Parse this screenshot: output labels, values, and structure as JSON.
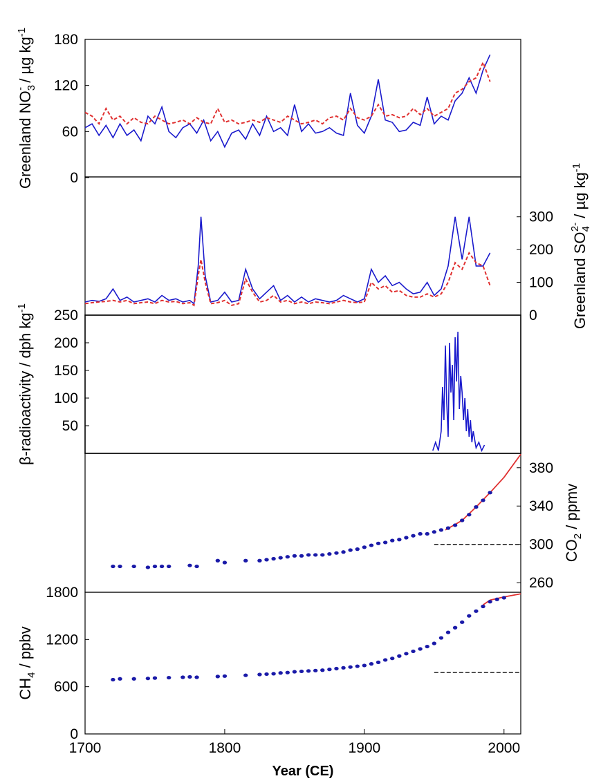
{
  "chart_data": [
    {
      "type": "line",
      "panel": "nitrate",
      "xlim": [
        1700,
        2012
      ],
      "ylim": [
        0,
        180
      ],
      "yticks": [
        "0",
        "60",
        "120",
        "180"
      ],
      "ylabel": {
        "main": "Greenland NO",
        "sub": "3",
        "sup": "-",
        "unit": " / µg kg",
        "unitsup": "-1"
      },
      "axis_side": "left",
      "series": [
        {
          "style": "solid",
          "color": "#1a1acc",
          "x": [
            1700,
            1705,
            1710,
            1715,
            1720,
            1725,
            1730,
            1735,
            1740,
            1745,
            1750,
            1755,
            1760,
            1765,
            1770,
            1775,
            1780,
            1785,
            1790,
            1795,
            1800,
            1805,
            1810,
            1815,
            1820,
            1825,
            1830,
            1835,
            1840,
            1845,
            1850,
            1855,
            1860,
            1865,
            1870,
            1875,
            1880,
            1885,
            1890,
            1895,
            1900,
            1905,
            1910,
            1915,
            1920,
            1925,
            1930,
            1935,
            1940,
            1945,
            1950,
            1955,
            1960,
            1965,
            1970,
            1975,
            1980,
            1985,
            1990
          ],
          "y": [
            65,
            70,
            55,
            68,
            52,
            70,
            55,
            62,
            48,
            80,
            70,
            92,
            60,
            52,
            65,
            70,
            58,
            75,
            48,
            60,
            40,
            58,
            62,
            50,
            70,
            55,
            80,
            60,
            65,
            55,
            95,
            60,
            70,
            58,
            60,
            65,
            58,
            55,
            110,
            68,
            58,
            80,
            128,
            75,
            72,
            60,
            62,
            72,
            68,
            105,
            70,
            80,
            75,
            100,
            110,
            130,
            110,
            140,
            160
          ]
        },
        {
          "style": "dashed",
          "color": "#e03030",
          "x": [
            1700,
            1705,
            1710,
            1715,
            1720,
            1725,
            1730,
            1735,
            1740,
            1745,
            1750,
            1755,
            1760,
            1765,
            1770,
            1775,
            1780,
            1785,
            1790,
            1795,
            1800,
            1805,
            1810,
            1815,
            1820,
            1825,
            1830,
            1835,
            1840,
            1845,
            1850,
            1855,
            1860,
            1865,
            1870,
            1875,
            1880,
            1885,
            1890,
            1895,
            1900,
            1905,
            1910,
            1915,
            1920,
            1925,
            1930,
            1935,
            1940,
            1945,
            1950,
            1955,
            1960,
            1965,
            1970,
            1975,
            1980,
            1985,
            1990
          ],
          "y": [
            85,
            80,
            70,
            90,
            75,
            80,
            70,
            78,
            72,
            70,
            80,
            75,
            70,
            72,
            75,
            70,
            78,
            72,
            70,
            90,
            72,
            75,
            70,
            72,
            75,
            72,
            78,
            75,
            72,
            80,
            75,
            70,
            72,
            75,
            70,
            78,
            80,
            75,
            90,
            78,
            75,
            80,
            95,
            80,
            82,
            78,
            80,
            90,
            82,
            90,
            80,
            85,
            90,
            110,
            115,
            125,
            130,
            150,
            125
          ]
        }
      ]
    },
    {
      "type": "line",
      "panel": "sulfate",
      "xlim": [
        1700,
        2012
      ],
      "ylim": [
        0,
        350
      ],
      "yticks": [
        "0",
        "100",
        "200",
        "300"
      ],
      "ylabel": {
        "main": "Greenland SO",
        "sub": "4",
        "sup": "2-",
        "unit": " / µg kg",
        "unitsup": "-1"
      },
      "axis_side": "right",
      "series": [
        {
          "style": "solid",
          "color": "#1a1acc",
          "x": [
            1700,
            1705,
            1710,
            1715,
            1720,
            1725,
            1730,
            1735,
            1740,
            1745,
            1750,
            1755,
            1760,
            1765,
            1770,
            1775,
            1778,
            1781,
            1783,
            1786,
            1790,
            1795,
            1800,
            1805,
            1810,
            1815,
            1820,
            1825,
            1830,
            1835,
            1840,
            1845,
            1850,
            1855,
            1860,
            1865,
            1870,
            1875,
            1880,
            1885,
            1890,
            1895,
            1900,
            1905,
            1910,
            1915,
            1920,
            1925,
            1930,
            1935,
            1940,
            1945,
            1950,
            1955,
            1960,
            1965,
            1970,
            1975,
            1980,
            1985,
            1990
          ],
          "y": [
            40,
            45,
            42,
            50,
            80,
            45,
            55,
            40,
            45,
            50,
            40,
            60,
            45,
            50,
            40,
            45,
            35,
            150,
            300,
            120,
            40,
            45,
            70,
            40,
            45,
            140,
            80,
            50,
            70,
            90,
            45,
            60,
            40,
            55,
            40,
            50,
            45,
            40,
            45,
            60,
            50,
            40,
            50,
            140,
            100,
            120,
            90,
            100,
            80,
            65,
            70,
            100,
            60,
            80,
            150,
            300,
            170,
            300,
            150,
            150,
            190
          ]
        },
        {
          "style": "dashed",
          "color": "#e03030",
          "x": [
            1700,
            1705,
            1710,
            1715,
            1720,
            1725,
            1730,
            1735,
            1740,
            1745,
            1750,
            1755,
            1760,
            1765,
            1770,
            1775,
            1778,
            1781,
            1783,
            1786,
            1790,
            1795,
            1800,
            1805,
            1810,
            1815,
            1820,
            1825,
            1830,
            1835,
            1840,
            1845,
            1850,
            1855,
            1860,
            1865,
            1870,
            1875,
            1880,
            1885,
            1890,
            1895,
            1900,
            1905,
            1910,
            1915,
            1920,
            1925,
            1930,
            1935,
            1940,
            1945,
            1950,
            1955,
            1960,
            1965,
            1970,
            1975,
            1980,
            1985,
            1990
          ],
          "y": [
            35,
            38,
            40,
            42,
            45,
            40,
            45,
            35,
            38,
            40,
            35,
            45,
            40,
            42,
            35,
            38,
            30,
            120,
            170,
            100,
            35,
            38,
            45,
            30,
            35,
            110,
            70,
            40,
            45,
            60,
            40,
            45,
            35,
            40,
            35,
            40,
            38,
            35,
            40,
            45,
            40,
            38,
            40,
            100,
            80,
            90,
            70,
            75,
            60,
            55,
            55,
            65,
            55,
            65,
            100,
            160,
            140,
            190,
            160,
            150,
            90
          ]
        }
      ]
    },
    {
      "type": "line",
      "panel": "beta",
      "xlim": [
        1700,
        2012
      ],
      "ylim": [
        0,
        250
      ],
      "yticks": [
        "50",
        "100",
        "150",
        "200",
        "250"
      ],
      "ylabel": {
        "main": "β-radioactivity / dph kg",
        "unitsup": "-1"
      },
      "axis_side": "left",
      "series": [
        {
          "style": "solid",
          "color": "#1a1acc",
          "x": [
            1949,
            1951,
            1953,
            1955,
            1956,
            1957,
            1958,
            1959,
            1960,
            1961,
            1962,
            1963,
            1964,
            1965,
            1966,
            1967,
            1968,
            1969,
            1970,
            1971,
            1972,
            1973,
            1974,
            1975,
            1976,
            1977,
            1978,
            1980,
            1982,
            1984,
            1986
          ],
          "y": [
            5,
            20,
            5,
            40,
            120,
            60,
            195,
            90,
            30,
            200,
            110,
            160,
            60,
            210,
            130,
            220,
            80,
            140,
            110,
            60,
            100,
            40,
            80,
            30,
            60,
            20,
            40,
            10,
            20,
            5,
            15
          ]
        }
      ]
    },
    {
      "type": "scatter",
      "panel": "co2",
      "xlim": [
        1700,
        2012
      ],
      "ylim": [
        250,
        395
      ],
      "yticks": [
        "260",
        "300",
        "340",
        "380"
      ],
      "ylabel": {
        "main": "CO",
        "sub": "2",
        "unit": " / ppmv"
      },
      "axis_side": "right",
      "x": [
        1720,
        1725,
        1735,
        1745,
        1750,
        1755,
        1760,
        1775,
        1780,
        1795,
        1800,
        1815,
        1825,
        1830,
        1835,
        1840,
        1845,
        1850,
        1855,
        1860,
        1865,
        1870,
        1875,
        1880,
        1885,
        1890,
        1895,
        1900,
        1905,
        1910,
        1915,
        1920,
        1925,
        1930,
        1935,
        1940,
        1945,
        1950,
        1955,
        1960,
        1965,
        1970,
        1975,
        1980,
        1985,
        1990
      ],
      "y": [
        277,
        277,
        277,
        276,
        277,
        277,
        277,
        278,
        277,
        283,
        281,
        283,
        283,
        284,
        285,
        286,
        287,
        288,
        288,
        289,
        289,
        289,
        290,
        291,
        292,
        294,
        295,
        297,
        299,
        301,
        302,
        304,
        305,
        307,
        309,
        311,
        311,
        313,
        315,
        317,
        320,
        325,
        331,
        339,
        346,
        354
      ],
      "instrumental": {
        "x": [
          1958,
          1970,
          1980,
          1990,
          2000,
          2012
        ],
        "y": [
          315,
          325,
          339,
          354,
          370,
          394
        ]
      },
      "baseline": {
        "value": 300,
        "x_range": [
          1950,
          2012
        ]
      }
    },
    {
      "type": "scatter",
      "panel": "ch4",
      "xlim": [
        1700,
        2012
      ],
      "ylim": [
        0,
        1800
      ],
      "yticks": [
        "0",
        "600",
        "1200",
        "1800"
      ],
      "ylabel": {
        "main": "CH",
        "sub": "4",
        "unit": " / ppbv"
      },
      "axis_side": "left",
      "x": [
        1720,
        1725,
        1735,
        1745,
        1750,
        1760,
        1770,
        1775,
        1780,
        1795,
        1800,
        1815,
        1825,
        1830,
        1835,
        1840,
        1845,
        1850,
        1855,
        1860,
        1865,
        1870,
        1875,
        1880,
        1885,
        1890,
        1895,
        1900,
        1905,
        1910,
        1915,
        1920,
        1925,
        1930,
        1935,
        1940,
        1945,
        1950,
        1955,
        1960,
        1965,
        1970,
        1975,
        1980,
        1985,
        1990,
        1995,
        2000
      ],
      "y": [
        690,
        700,
        700,
        705,
        710,
        715,
        720,
        725,
        720,
        730,
        735,
        745,
        755,
        760,
        765,
        775,
        780,
        790,
        795,
        800,
        805,
        810,
        820,
        830,
        840,
        850,
        860,
        870,
        890,
        910,
        940,
        960,
        990,
        1020,
        1050,
        1080,
        1110,
        1150,
        1220,
        1290,
        1350,
        1420,
        1500,
        1560,
        1620,
        1680,
        1710,
        1730
      ],
      "instrumental": {
        "x": [
          1985,
          1990,
          2000,
          2012
        ],
        "y": [
          1640,
          1700,
          1740,
          1780
        ]
      },
      "baseline": {
        "value": 780,
        "x_range": [
          1950,
          2012
        ]
      }
    }
  ],
  "xaxis": {
    "label": "Year (CE)",
    "ticks": [
      "1700",
      "1800",
      "1900",
      "2000"
    ],
    "tick_values": [
      1700,
      1800,
      1900,
      2000
    ]
  }
}
